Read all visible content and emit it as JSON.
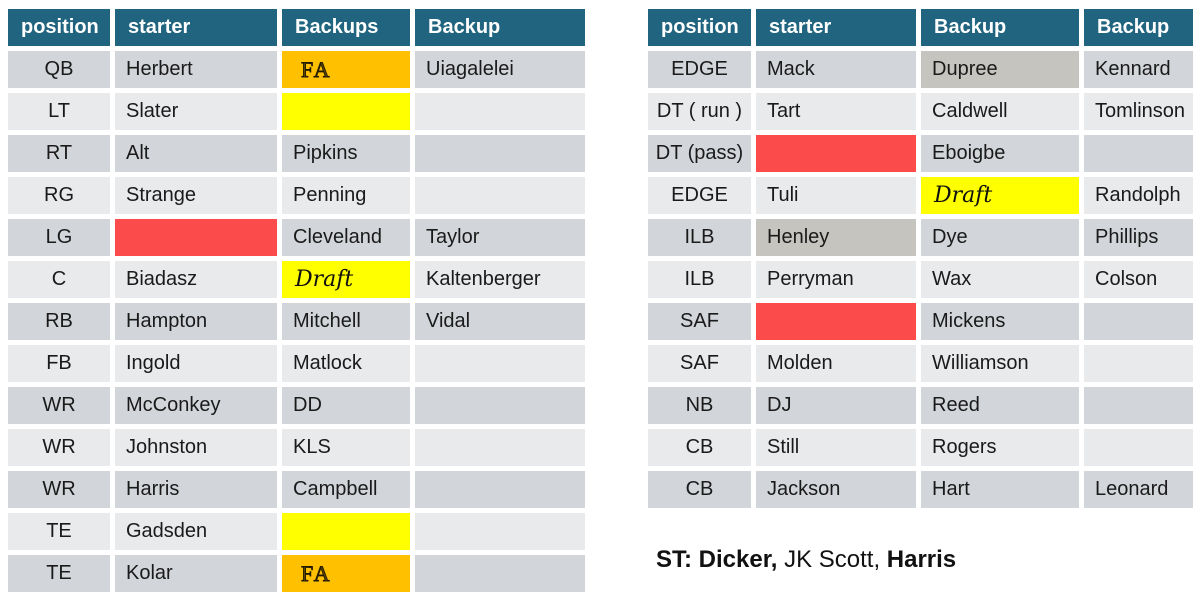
{
  "colors": {
    "header_bg": "#20647F",
    "header_text": "#FFFFFF",
    "row_dark": "#D2D5DA",
    "row_light": "#E9EAEC",
    "highlight_red": "#FB4B4B",
    "highlight_yellow": "#FFFF00",
    "highlight_orange": "#FFC000",
    "highlight_gray": "#C6C4BE",
    "cell_text": "#1A1A1A"
  },
  "tables": {
    "left": {
      "headers": [
        "position",
        "starter",
        "Backups",
        "Backup"
      ],
      "rows": [
        {
          "cells": [
            {
              "text": "QB"
            },
            {
              "text": "Herbert"
            },
            {
              "text": "FA",
              "bg": "orange",
              "style": "fa"
            },
            {
              "text": "Uiagalelei"
            }
          ]
        },
        {
          "cells": [
            {
              "text": "LT"
            },
            {
              "text": "Slater"
            },
            {
              "text": "",
              "bg": "yellow"
            },
            {
              "text": ""
            }
          ]
        },
        {
          "cells": [
            {
              "text": "RT"
            },
            {
              "text": "Alt"
            },
            {
              "text": "Pipkins"
            },
            {
              "text": ""
            }
          ]
        },
        {
          "cells": [
            {
              "text": "RG"
            },
            {
              "text": "Strange"
            },
            {
              "text": "Penning"
            },
            {
              "text": ""
            }
          ]
        },
        {
          "cells": [
            {
              "text": "LG"
            },
            {
              "text": "",
              "bg": "red"
            },
            {
              "text": "Cleveland"
            },
            {
              "text": "Taylor"
            }
          ]
        },
        {
          "cells": [
            {
              "text": "C"
            },
            {
              "text": "Biadasz"
            },
            {
              "text": "Draft",
              "bg": "yellow",
              "style": "draft"
            },
            {
              "text": "Kaltenberger"
            }
          ]
        },
        {
          "cells": [
            {
              "text": "RB"
            },
            {
              "text": "Hampton"
            },
            {
              "text": "Mitchell"
            },
            {
              "text": "Vidal"
            }
          ]
        },
        {
          "cells": [
            {
              "text": "FB"
            },
            {
              "text": "Ingold"
            },
            {
              "text": "Matlock"
            },
            {
              "text": ""
            }
          ]
        },
        {
          "cells": [
            {
              "text": "WR"
            },
            {
              "text": "McConkey"
            },
            {
              "text": "DD"
            },
            {
              "text": ""
            }
          ]
        },
        {
          "cells": [
            {
              "text": "WR"
            },
            {
              "text": "Johnston"
            },
            {
              "text": "KLS"
            },
            {
              "text": ""
            }
          ]
        },
        {
          "cells": [
            {
              "text": "WR"
            },
            {
              "text": "Harris"
            },
            {
              "text": "Campbell"
            },
            {
              "text": ""
            }
          ]
        },
        {
          "cells": [
            {
              "text": "TE"
            },
            {
              "text": "Gadsden"
            },
            {
              "text": "",
              "bg": "yellow"
            },
            {
              "text": ""
            }
          ]
        },
        {
          "cells": [
            {
              "text": "TE"
            },
            {
              "text": "Kolar"
            },
            {
              "text": "FA",
              "bg": "orange",
              "style": "fa"
            },
            {
              "text": ""
            }
          ]
        }
      ]
    },
    "right": {
      "headers": [
        "position",
        "starter",
        "Backup",
        "Backup"
      ],
      "rows": [
        {
          "cells": [
            {
              "text": "EDGE"
            },
            {
              "text": "Mack"
            },
            {
              "text": "Dupree",
              "bg": "gray"
            },
            {
              "text": "Kennard"
            }
          ]
        },
        {
          "cells": [
            {
              "text": "DT ( run )"
            },
            {
              "text": "Tart"
            },
            {
              "text": "Caldwell"
            },
            {
              "text": "Tomlinson"
            }
          ]
        },
        {
          "cells": [
            {
              "text": "DT (pass)"
            },
            {
              "text": "",
              "bg": "red"
            },
            {
              "text": "Eboigbe"
            },
            {
              "text": ""
            }
          ]
        },
        {
          "cells": [
            {
              "text": "EDGE"
            },
            {
              "text": "Tuli"
            },
            {
              "text": "Draft",
              "bg": "yellow",
              "style": "draft"
            },
            {
              "text": "Randolph"
            }
          ]
        },
        {
          "cells": [
            {
              "text": "ILB"
            },
            {
              "text": "Henley",
              "bg": "gray"
            },
            {
              "text": "Dye"
            },
            {
              "text": "Phillips"
            }
          ]
        },
        {
          "cells": [
            {
              "text": "ILB"
            },
            {
              "text": "Perryman"
            },
            {
              "text": "Wax"
            },
            {
              "text": "Colson"
            }
          ]
        },
        {
          "cells": [
            {
              "text": "SAF"
            },
            {
              "text": "",
              "bg": "red"
            },
            {
              "text": "Mickens"
            },
            {
              "text": ""
            }
          ]
        },
        {
          "cells": [
            {
              "text": "SAF"
            },
            {
              "text": "Molden"
            },
            {
              "text": "Williamson"
            },
            {
              "text": ""
            }
          ]
        },
        {
          "cells": [
            {
              "text": "NB"
            },
            {
              "text": "DJ"
            },
            {
              "text": "Reed"
            },
            {
              "text": ""
            }
          ]
        },
        {
          "cells": [
            {
              "text": "CB"
            },
            {
              "text": "Still"
            },
            {
              "text": "Rogers"
            },
            {
              "text": ""
            }
          ]
        },
        {
          "cells": [
            {
              "text": "CB"
            },
            {
              "text": "Jackson"
            },
            {
              "text": "Hart"
            },
            {
              "text": "Leonard"
            }
          ]
        }
      ]
    }
  },
  "footnote": {
    "segments": [
      {
        "text": "ST: Dicker,",
        "bold": true
      },
      {
        "text": " JK Scott, ",
        "bold": false
      },
      {
        "text": "Harris",
        "bold": true
      }
    ]
  }
}
